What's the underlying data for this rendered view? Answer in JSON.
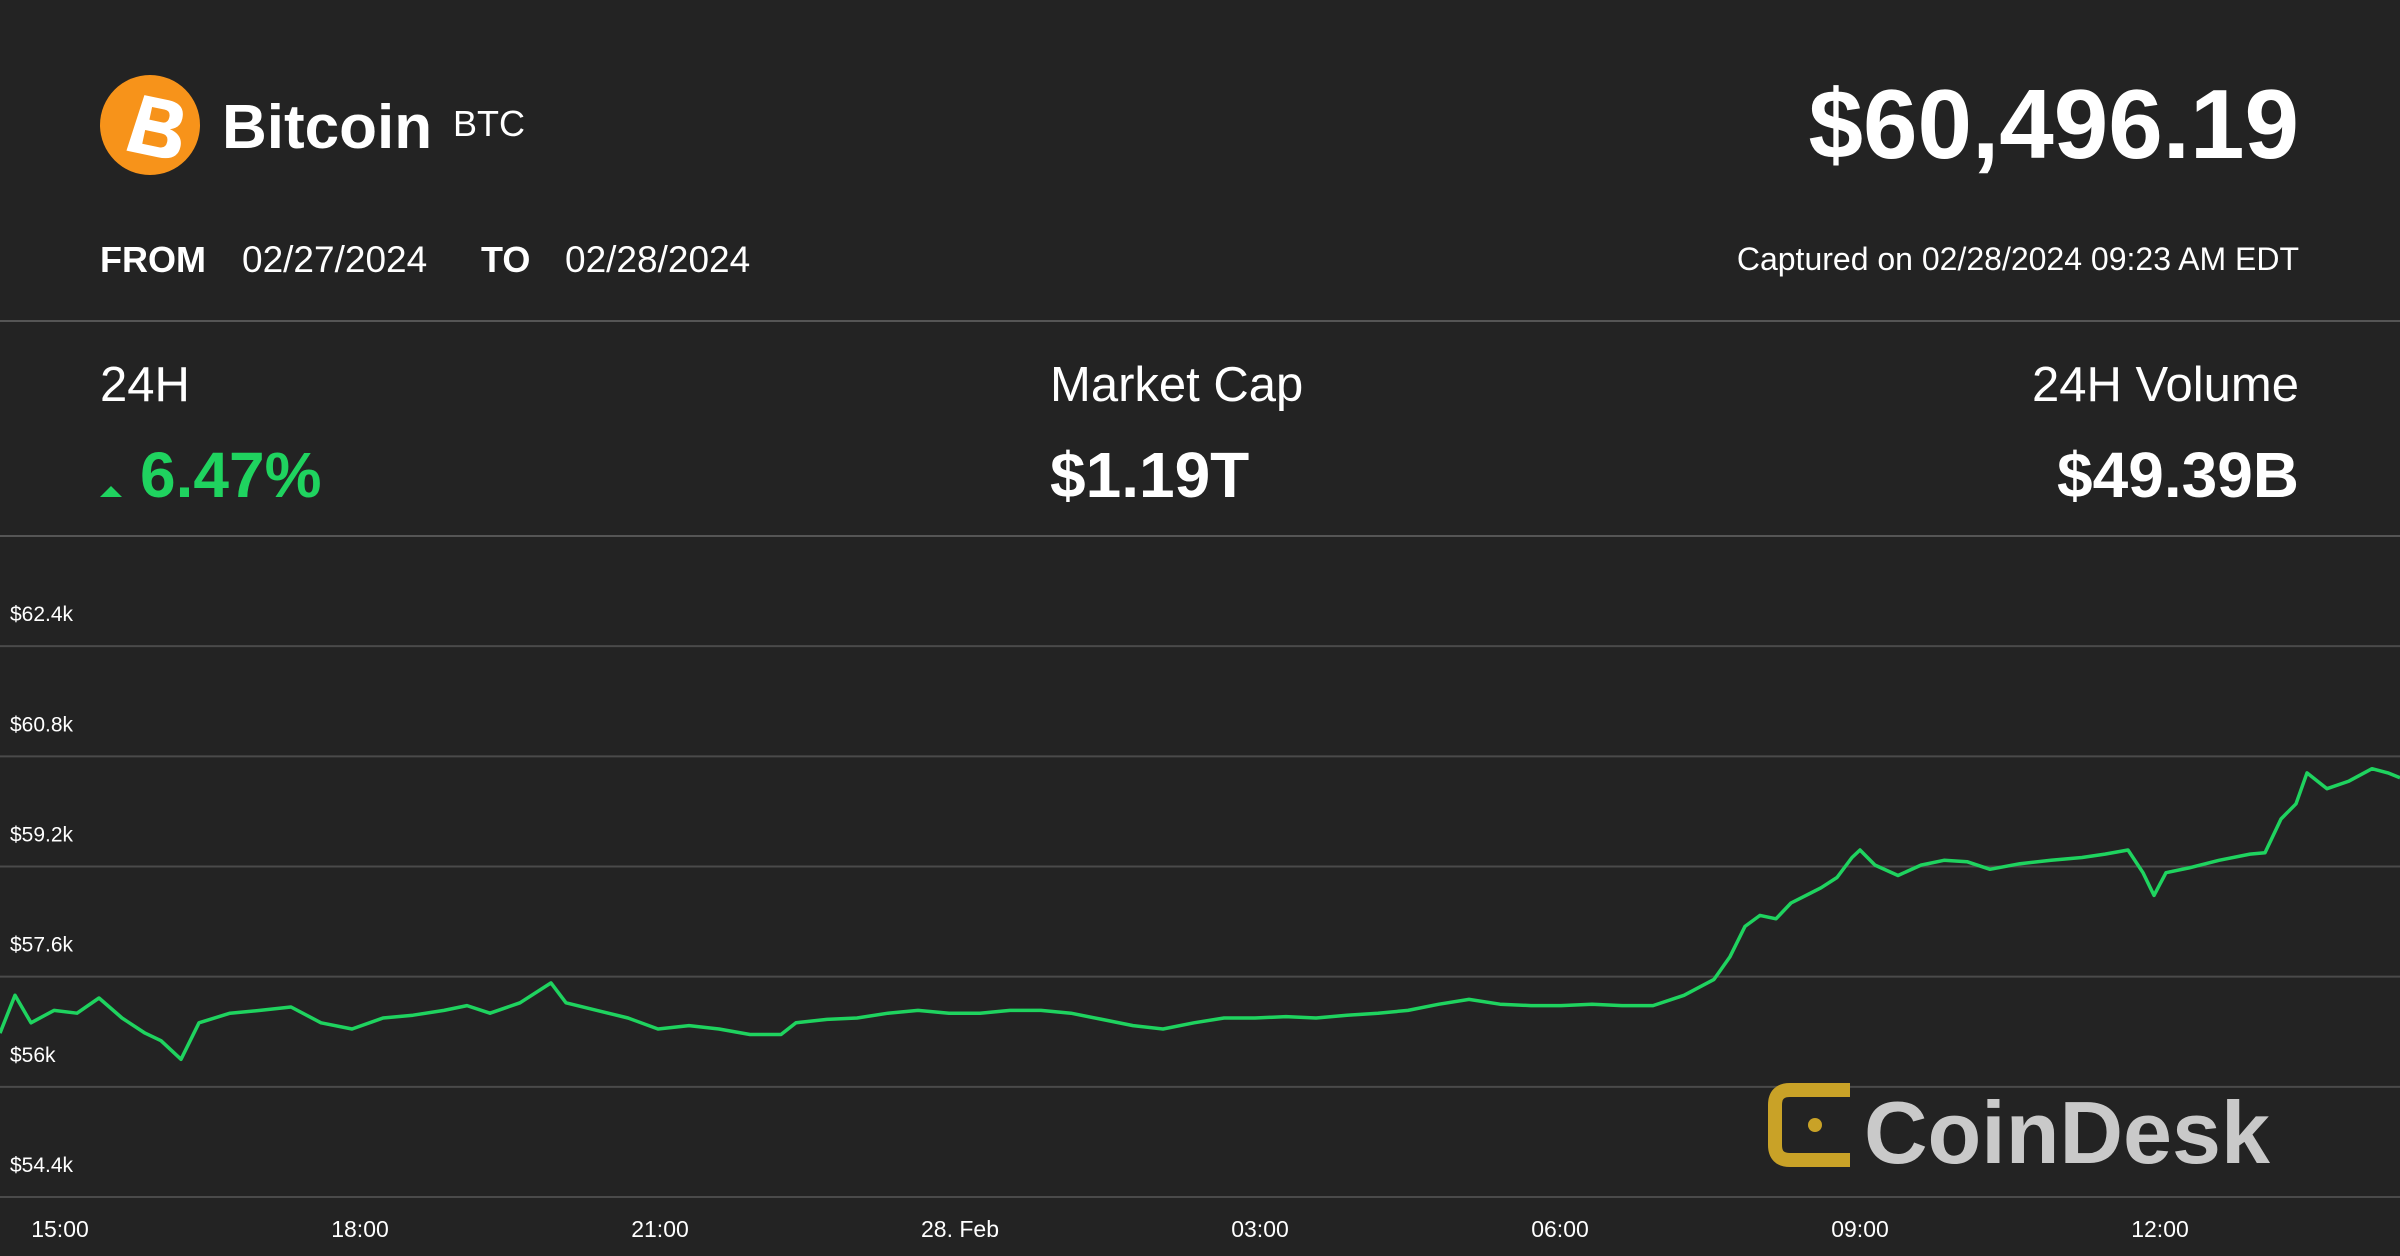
{
  "header": {
    "name": "Bitcoin",
    "symbol": "BTC",
    "price": "$60,496.19",
    "from_label": "FROM",
    "from_date": "02/27/2024",
    "to_label": "TO",
    "to_date": "02/28/2024",
    "captured": "Captured on 02/28/2024 09:23 AM EDT"
  },
  "stats": [
    {
      "label": "24H",
      "value": "6.47%"
    },
    {
      "label": "Market Cap",
      "value": "$1.19T"
    },
    {
      "label": "24H Volume",
      "value": "$49.39B"
    }
  ],
  "chart_data": {
    "type": "line",
    "color": "#1fd35f",
    "grid": true,
    "watermark": "CoinDesk",
    "xlim": [
      14.4,
      38.4
    ],
    "xticks": [
      {
        "value": 15,
        "label": "15:00"
      },
      {
        "value": 18,
        "label": "18:00"
      },
      {
        "value": 21,
        "label": "21:00"
      },
      {
        "value": 24,
        "label": "28. Feb"
      },
      {
        "value": 27,
        "label": "03:00"
      },
      {
        "value": 30,
        "label": "06:00"
      },
      {
        "value": 33,
        "label": "09:00"
      },
      {
        "value": 36,
        "label": "12:00"
      }
    ],
    "ylim": [
      54400,
      64000
    ],
    "yticks": [
      {
        "value": 54400,
        "label": "$54.4k"
      },
      {
        "value": 56000,
        "label": "$56k"
      },
      {
        "value": 57600,
        "label": "$57.6k"
      },
      {
        "value": 59200,
        "label": "$59.2k"
      },
      {
        "value": 60800,
        "label": "$60.8k"
      },
      {
        "value": 62400,
        "label": "$62.4k"
      }
    ],
    "x": [
      14.4,
      14.55,
      14.71,
      14.94,
      15.17,
      15.39,
      15.62,
      15.85,
      16.01,
      16.21,
      16.39,
      16.7,
      17.0,
      17.31,
      17.61,
      17.92,
      18.23,
      18.53,
      18.84,
      19.07,
      19.3,
      19.6,
      19.91,
      20.06,
      20.37,
      20.68,
      20.98,
      21.29,
      21.59,
      21.9,
      22.21,
      22.36,
      22.67,
      22.97,
      23.28,
      23.58,
      23.89,
      24.2,
      24.5,
      24.81,
      25.11,
      25.42,
      25.73,
      26.03,
      26.34,
      26.64,
      26.95,
      27.26,
      27.56,
      27.87,
      28.18,
      28.48,
      28.79,
      29.09,
      29.4,
      29.71,
      30.01,
      30.32,
      30.62,
      30.93,
      31.24,
      31.54,
      31.7,
      31.85,
      32.0,
      32.16,
      32.31,
      32.46,
      32.61,
      32.77,
      32.92,
      33.0,
      33.15,
      33.38,
      33.61,
      33.84,
      34.07,
      34.3,
      34.6,
      34.91,
      35.22,
      35.45,
      35.68,
      35.83,
      35.94,
      36.06,
      36.29,
      36.59,
      36.9,
      37.05,
      37.21,
      37.36,
      37.47,
      37.67,
      37.89,
      38.12,
      38.28,
      38.4
    ],
    "values": [
      56780,
      57330,
      56930,
      57110,
      57070,
      57290,
      57000,
      56780,
      56670,
      56400,
      56930,
      57070,
      57110,
      57160,
      56930,
      56840,
      57000,
      57040,
      57110,
      57180,
      57070,
      57220,
      57510,
      57220,
      57110,
      57000,
      56840,
      56890,
      56840,
      56760,
      56760,
      56930,
      56980,
      57000,
      57070,
      57110,
      57070,
      57070,
      57110,
      57110,
      57070,
      56980,
      56890,
      56840,
      56930,
      57000,
      57000,
      57020,
      57000,
      57040,
      57070,
      57110,
      57200,
      57270,
      57200,
      57180,
      57180,
      57200,
      57180,
      57180,
      57330,
      57560,
      57890,
      58330,
      58490,
      58440,
      58670,
      58780,
      58890,
      59040,
      59330,
      59440,
      59220,
      59070,
      59220,
      59290,
      59270,
      59160,
      59240,
      59290,
      59330,
      59380,
      59440,
      59110,
      58780,
      59110,
      59180,
      59290,
      59380,
      59400,
      59890,
      60110,
      60560,
      60330,
      60440,
      60620,
      60560,
      60490
    ]
  }
}
